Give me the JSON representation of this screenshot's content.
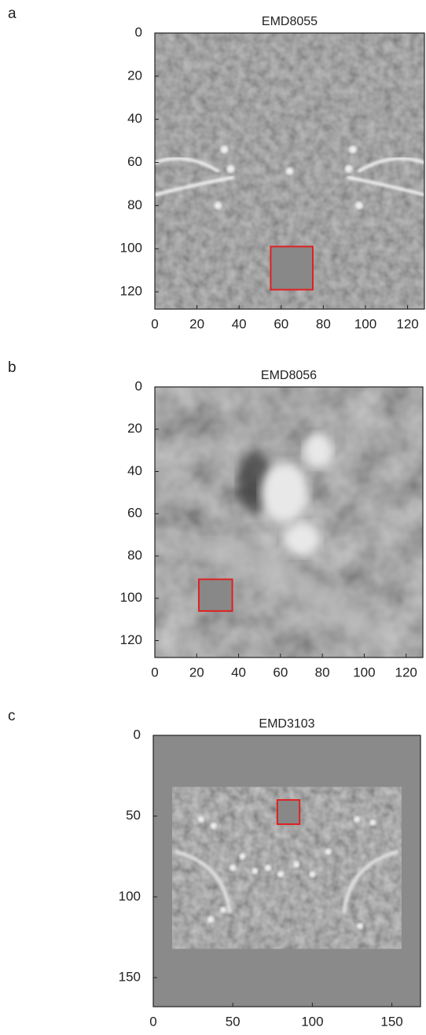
{
  "chart_data": [
    {
      "type": "image",
      "panel_label": "a",
      "title": "EMD8055",
      "xlim": [
        0,
        128
      ],
      "ylim": [
        0,
        128
      ],
      "xticks": [
        0,
        20,
        40,
        60,
        80,
        100,
        120
      ],
      "yticks": [
        0,
        20,
        40,
        60,
        80,
        100,
        120
      ],
      "box": {
        "x": [
          55,
          75
        ],
        "y": [
          99,
          119
        ],
        "color": "#e02020"
      }
    },
    {
      "type": "image",
      "panel_label": "b",
      "title": "EMD8056",
      "xlim": [
        0,
        128
      ],
      "ylim": [
        0,
        128
      ],
      "xticks": [
        0,
        20,
        40,
        60,
        80,
        100,
        120
      ],
      "yticks": [
        0,
        20,
        40,
        60,
        80,
        100,
        120
      ],
      "box": {
        "x": [
          21,
          37
        ],
        "y": [
          91,
          106
        ],
        "color": "#e02020"
      }
    },
    {
      "type": "image",
      "panel_label": "c",
      "title": "EMD3103",
      "xlim": [
        0,
        168
      ],
      "ylim": [
        0,
        168
      ],
      "xticks": [
        0,
        50,
        100,
        150
      ],
      "yticks": [
        0,
        50,
        100,
        150
      ],
      "box": {
        "x": [
          78,
          92
        ],
        "y": [
          40,
          55
        ],
        "color": "#e02020"
      }
    }
  ]
}
